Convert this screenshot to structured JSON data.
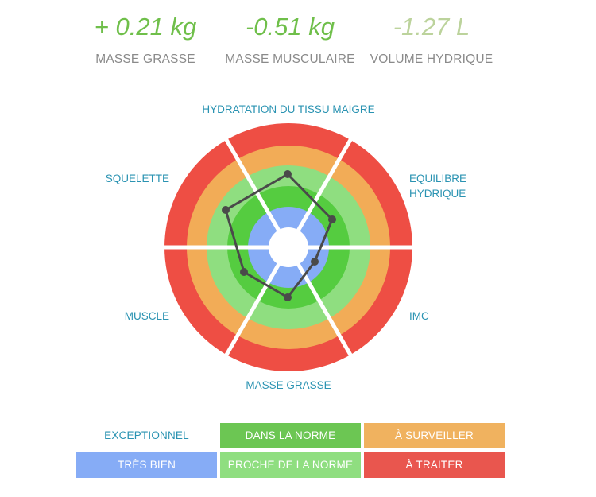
{
  "summary": {
    "fat_mass": {
      "value": "+ 0.21 kg",
      "label": "MASSE GRASSE",
      "color": "#6fbf4a"
    },
    "muscle_mass": {
      "value": "-0.51 kg",
      "label": "MASSE MUSCULAIRE",
      "color": "#6fbf4a"
    },
    "water_volume": {
      "value": "-1.27 L",
      "label": "VOLUME HYDRIQUE",
      "color": "#bcd39c"
    }
  },
  "radar": {
    "axes": [
      "HYDRATATION DU TISSU MAIGRE",
      "EQUILIBRE HYDRIQUE",
      "IMC",
      "MASSE GRASSE",
      "MUSCLE",
      "SQUELETTE"
    ],
    "rings": [
      {
        "name": "À TRAITER",
        "color": "#ee4e44"
      },
      {
        "name": "À SURVEILLER",
        "color": "#f2ac57"
      },
      {
        "name": "PROCHE DE LA NORME",
        "color": "#8fde80"
      },
      {
        "name": "DANS LA NORME",
        "color": "#55cc40"
      },
      {
        "name": "TRÈS BIEN",
        "color": "#86acf6"
      },
      {
        "name": "EXCEPTIONNEL",
        "color": "#ffffff"
      }
    ],
    "line_color": "#4a4a4a"
  },
  "legend": {
    "exceptionnel": {
      "label": "EXCEPTIONNEL",
      "text_color": "#2a93b2"
    },
    "dans_la_norme": {
      "label": "DANS LA NORME",
      "color": "#6cc653"
    },
    "a_surveiller": {
      "label": "À SURVEILLER",
      "color": "#f0b25f"
    },
    "tres_bien": {
      "label": "TRÈS BIEN",
      "color": "#86acf6"
    },
    "proche": {
      "label": "PROCHE DE LA NORME",
      "color": "#8fde80"
    },
    "a_traiter": {
      "label": "À TRAITER",
      "color": "#e9564e"
    }
  }
}
